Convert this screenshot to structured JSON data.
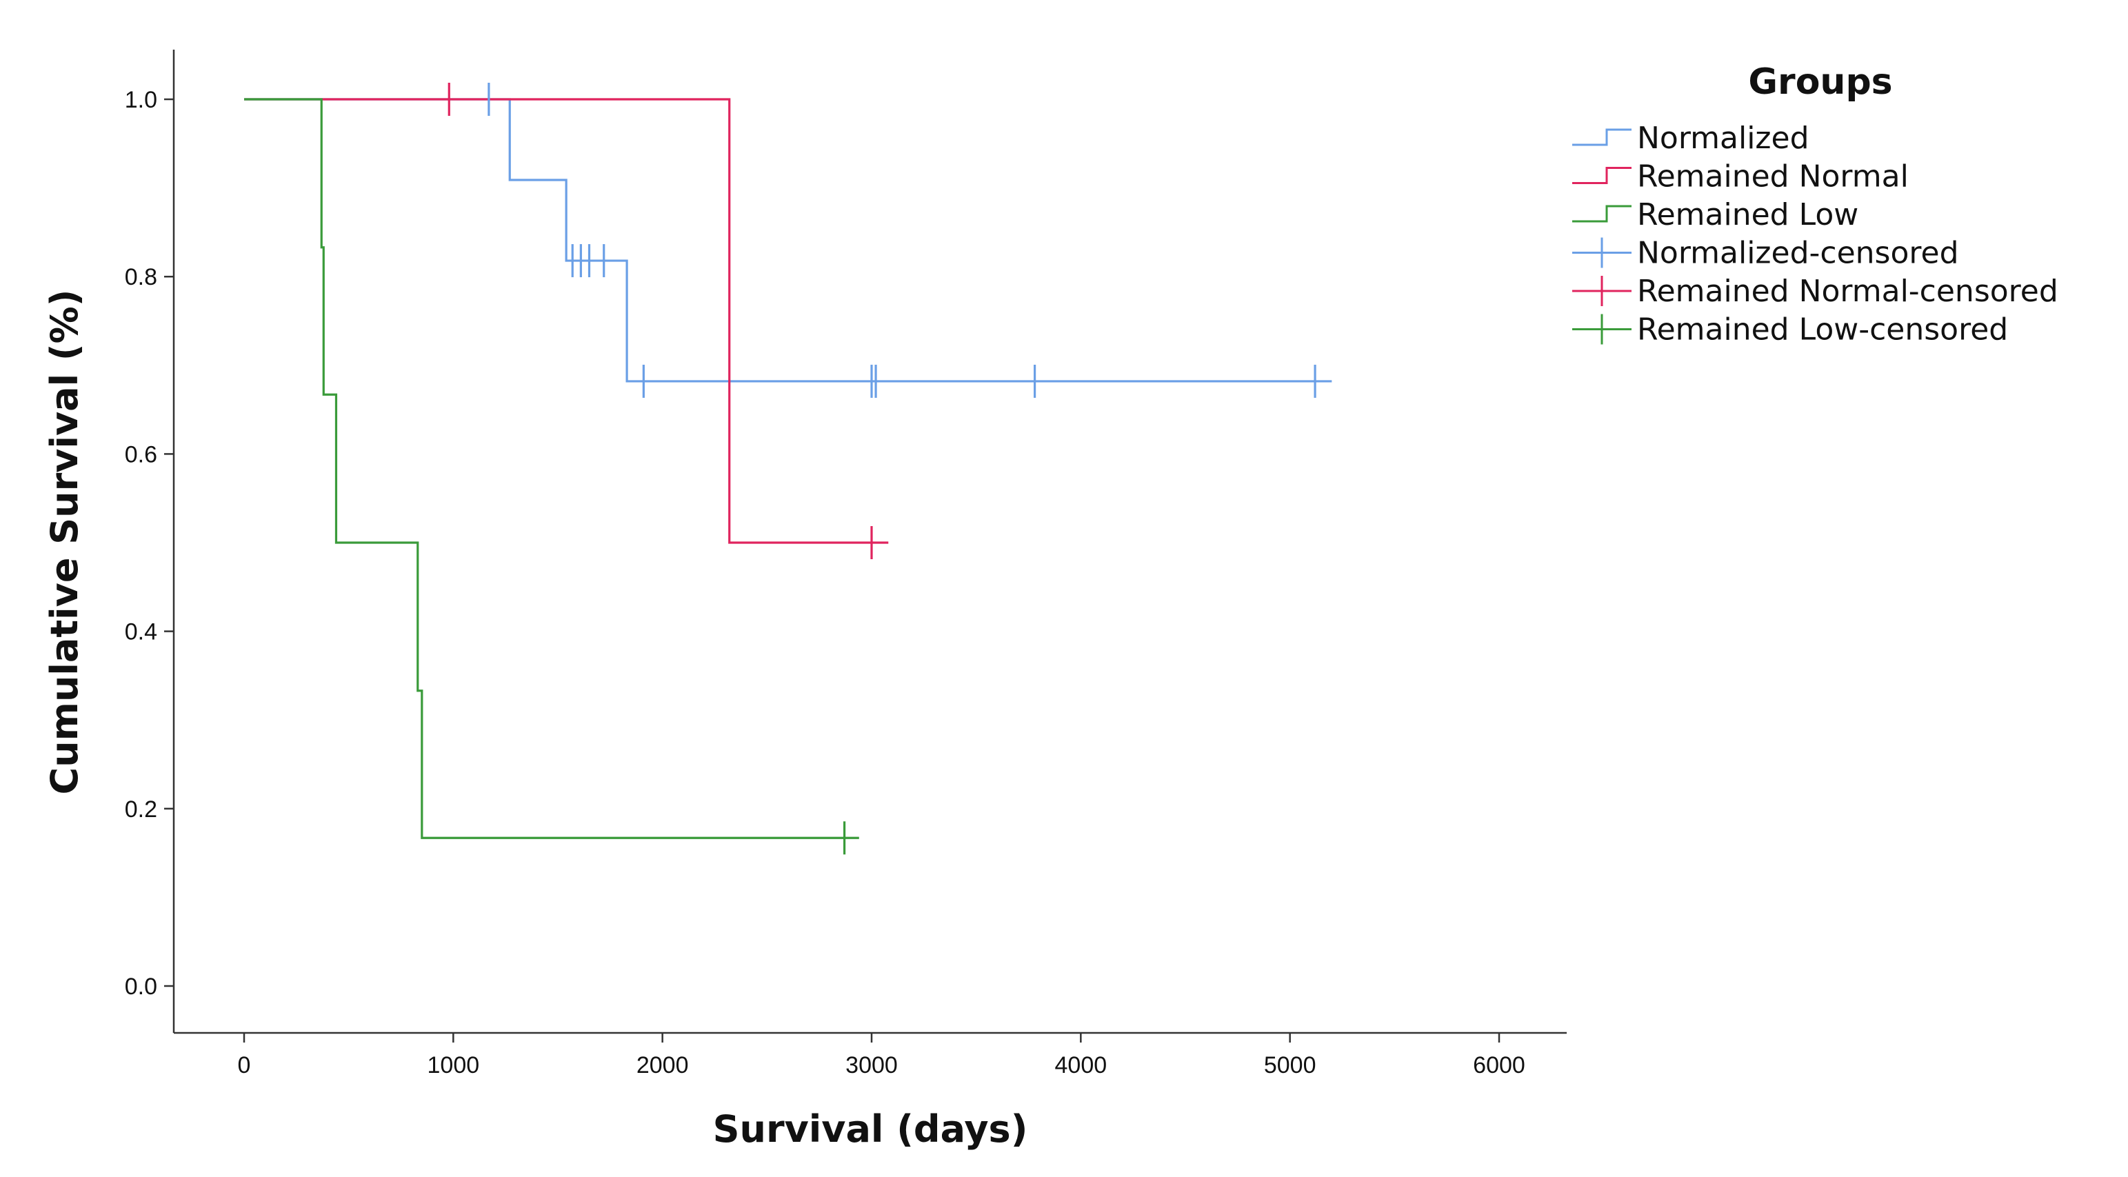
{
  "chart_data": {
    "type": "line",
    "subtype": "kaplan-meier-step",
    "title": "",
    "xlabel": "Survival (days)",
    "ylabel": "Cumulative Survival (%)",
    "xlim": [
      0,
      6000
    ],
    "ylim": [
      0,
      1
    ],
    "x_ticks": [
      "0",
      "1000",
      "2000",
      "3000",
      "4000",
      "5000",
      "6000"
    ],
    "y_ticks": [
      "0.0",
      "0.2",
      "0.4",
      "0.6",
      "0.8",
      "1.0"
    ],
    "grid": false,
    "legend": {
      "title": "Groups",
      "placement": "top-right",
      "entries": [
        {
          "label": "Normalized",
          "series": "Normalized",
          "kind": "step"
        },
        {
          "label": "Remained Normal",
          "series": "Remained Normal",
          "kind": "step"
        },
        {
          "label": "Remained Low",
          "series": "Remained Low",
          "kind": "step"
        },
        {
          "label": "Normalized-censored",
          "series": "Normalized",
          "kind": "censor"
        },
        {
          "label": "Remained Normal-censored",
          "series": "Remained Normal",
          "kind": "censor"
        },
        {
          "label": "Remained Low-censored",
          "series": "Remained Low",
          "kind": "censor"
        }
      ]
    },
    "series": [
      {
        "name": "Normalized",
        "color": "#6a9fe6",
        "x": [
          0,
          1270,
          1540,
          1830,
          5200
        ],
        "y": [
          1.0,
          0.909,
          0.818,
          0.682,
          0.682
        ],
        "censored": [
          {
            "x": 1170,
            "y": 1.0
          },
          {
            "x": 1570,
            "y": 0.818
          },
          {
            "x": 1610,
            "y": 0.818
          },
          {
            "x": 1650,
            "y": 0.818
          },
          {
            "x": 1720,
            "y": 0.818
          },
          {
            "x": 1910,
            "y": 0.682
          },
          {
            "x": 3000,
            "y": 0.682
          },
          {
            "x": 3020,
            "y": 0.682
          },
          {
            "x": 3780,
            "y": 0.682
          },
          {
            "x": 5120,
            "y": 0.682
          }
        ]
      },
      {
        "name": "Remained Normal",
        "color": "#e0245e",
        "x": [
          0,
          2320,
          3080
        ],
        "y": [
          1.0,
          0.5,
          0.5
        ],
        "censored": [
          {
            "x": 980,
            "y": 1.0
          },
          {
            "x": 3000,
            "y": 0.5
          }
        ]
      },
      {
        "name": "Remained Low",
        "color": "#3a9b3a",
        "x": [
          0,
          370,
          380,
          440,
          830,
          850,
          2940
        ],
        "y": [
          1.0,
          0.833,
          0.667,
          0.5,
          0.333,
          0.167,
          0.167
        ],
        "censored": [
          {
            "x": 2870,
            "y": 0.167
          }
        ]
      }
    ]
  }
}
